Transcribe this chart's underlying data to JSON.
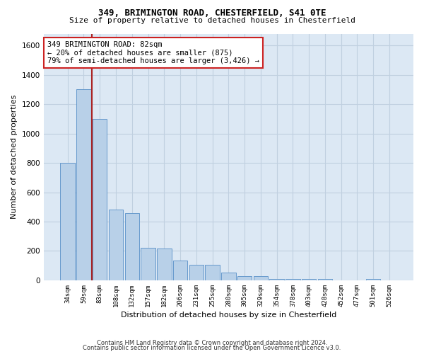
{
  "title1": "349, BRIMINGTON ROAD, CHESTERFIELD, S41 0TE",
  "title2": "Size of property relative to detached houses in Chesterfield",
  "xlabel": "Distribution of detached houses by size in Chesterfield",
  "ylabel": "Number of detached properties",
  "categories": [
    "34sqm",
    "59sqm",
    "83sqm",
    "108sqm",
    "132sqm",
    "157sqm",
    "182sqm",
    "206sqm",
    "231sqm",
    "255sqm",
    "280sqm",
    "305sqm",
    "329sqm",
    "354sqm",
    "378sqm",
    "403sqm",
    "428sqm",
    "452sqm",
    "477sqm",
    "501sqm",
    "526sqm"
  ],
  "values": [
    800,
    1300,
    1100,
    480,
    460,
    220,
    215,
    135,
    105,
    105,
    55,
    30,
    30,
    8,
    8,
    8,
    8,
    2,
    2,
    8,
    2
  ],
  "bar_color": "#b8d0e8",
  "bar_edge_color": "#6699cc",
  "grid_color": "#c0d0e0",
  "background_color": "#dce8f4",
  "vline_x": 1.5,
  "vline_color": "#aa2222",
  "annotation_text": "349 BRIMINGTON ROAD: 82sqm\n← 20% of detached houses are smaller (875)\n79% of semi-detached houses are larger (3,426) →",
  "annotation_box_color": "#cc2222",
  "ylim": [
    0,
    1680
  ],
  "yticks": [
    0,
    200,
    400,
    600,
    800,
    1000,
    1200,
    1400,
    1600
  ],
  "footnote1": "Contains HM Land Registry data © Crown copyright and database right 2024.",
  "footnote2": "Contains public sector information licensed under the Open Government Licence v3.0."
}
